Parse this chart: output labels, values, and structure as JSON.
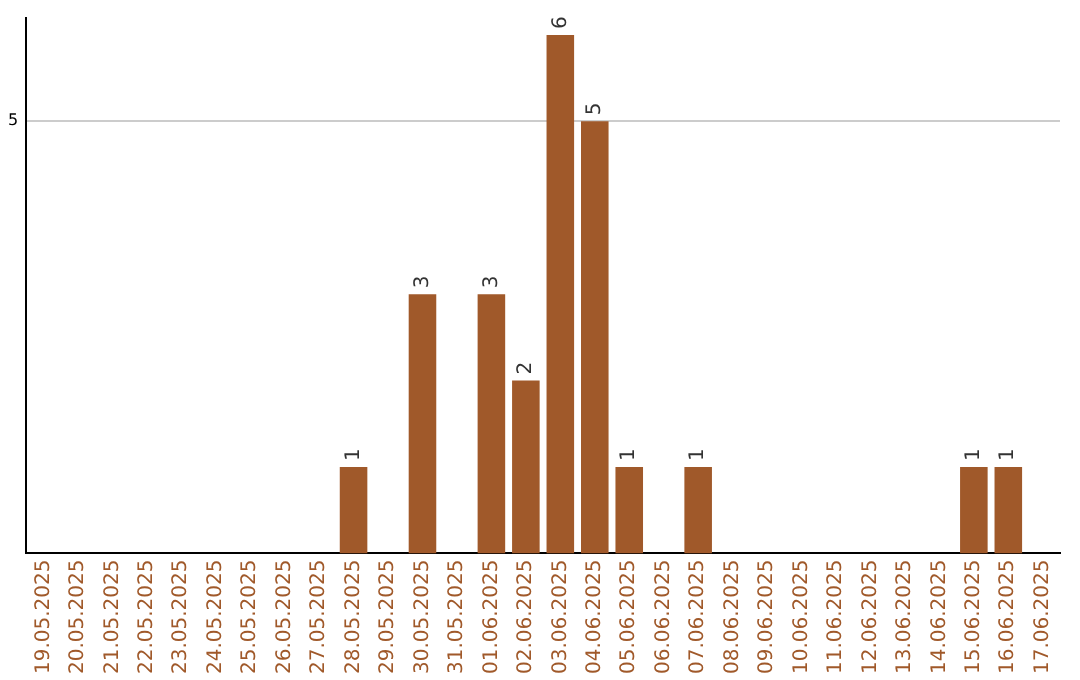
{
  "chart_data": {
    "type": "bar",
    "categories": [
      "19.05.2025",
      "20.05.2025",
      "21.05.2025",
      "22.05.2025",
      "23.05.2025",
      "24.05.2025",
      "25.05.2025",
      "26.05.2025",
      "27.05.2025",
      "28.05.2025",
      "29.05.2025",
      "30.05.2025",
      "31.05.2025",
      "01.06.2025",
      "02.06.2025",
      "03.06.2025",
      "04.06.2025",
      "05.06.2025",
      "06.06.2025",
      "07.06.2025",
      "08.06.2025",
      "09.06.2025",
      "10.06.2025",
      "11.06.2025",
      "12.06.2025",
      "13.06.2025",
      "14.06.2025",
      "15.06.2025",
      "16.06.2025",
      "17.06.2025"
    ],
    "values": [
      0,
      0,
      0,
      0,
      0,
      0,
      0,
      0,
      0,
      1,
      0,
      3,
      0,
      3,
      2,
      6,
      5,
      1,
      0,
      1,
      0,
      0,
      0,
      0,
      0,
      0,
      0,
      1,
      1,
      0
    ],
    "value_labels": [
      null,
      null,
      null,
      null,
      null,
      null,
      null,
      null,
      null,
      "1",
      null,
      "3",
      null,
      "3",
      "2",
      "6",
      "5",
      "1",
      null,
      "1",
      null,
      null,
      null,
      null,
      null,
      null,
      null,
      "1",
      "1",
      null
    ],
    "color": "#a0592a",
    "ylim": [
      0,
      6.2
    ],
    "yticks": [
      5
    ],
    "grid": "y"
  }
}
